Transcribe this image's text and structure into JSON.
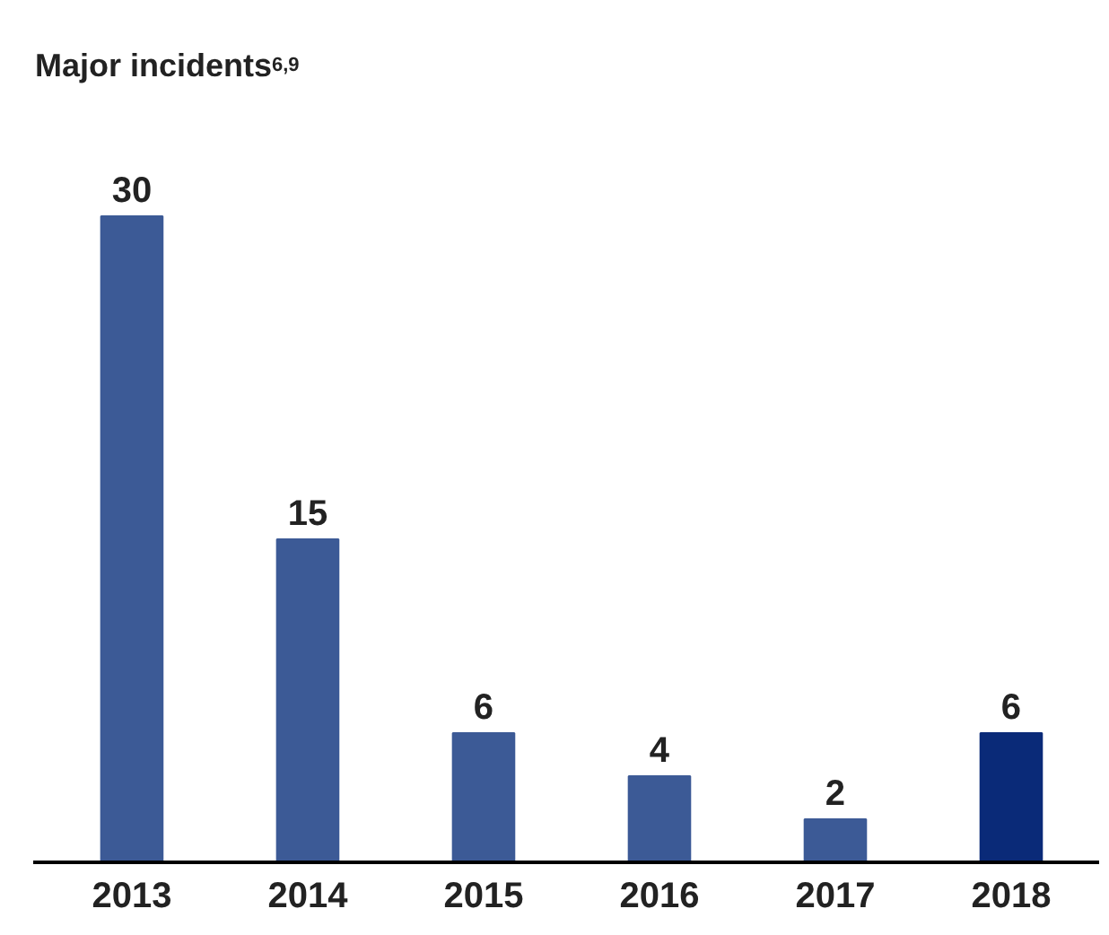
{
  "chart_data": {
    "type": "bar",
    "title": "Major incidents$^{6,9}$",
    "categories": [
      "2013",
      "2014",
      "2015",
      "2016",
      "2017",
      "2018"
    ],
    "values": [
      30,
      15,
      6,
      4,
      2,
      6
    ],
    "colors": [
      "#3c5a96",
      "#3c5a96",
      "#3c5a96",
      "#3c5a96",
      "#3c5a96",
      "#0a2a78"
    ],
    "data_labels": true,
    "grid": false
  }
}
